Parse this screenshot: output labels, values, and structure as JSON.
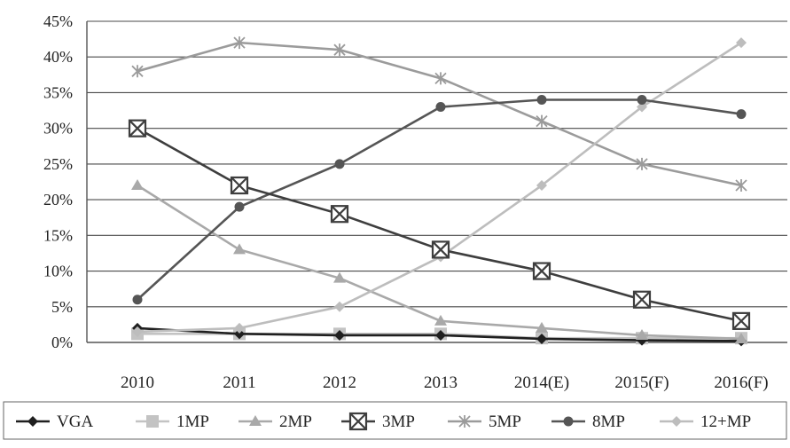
{
  "chart_data": {
    "type": "line",
    "categories": [
      "2010",
      "2011",
      "2012",
      "2013",
      "2014(E)",
      "2015(F)",
      "2016(F)"
    ],
    "ylim": [
      0,
      45
    ],
    "yticks": [
      0,
      5,
      10,
      15,
      20,
      25,
      30,
      35,
      40,
      45
    ],
    "ytick_labels": [
      "0%",
      "5%",
      "10%",
      "15%",
      "20%",
      "25%",
      "30%",
      "35%",
      "40%",
      "45%"
    ],
    "grid": true,
    "legend_position": "bottom",
    "series": [
      {
        "name": "VGA",
        "values": [
          2,
          1.2,
          1,
          1,
          0.5,
          0.3,
          0.2
        ],
        "color": "#1f1f1f",
        "marker": "diamond"
      },
      {
        "name": "1MP",
        "values": [
          1.2,
          1.2,
          1.2,
          1.2,
          0.6,
          0.6,
          0.6
        ],
        "color": "#c3c3c3",
        "marker": "square"
      },
      {
        "name": "2MP",
        "values": [
          22,
          13,
          9,
          3,
          2,
          1,
          0.5
        ],
        "color": "#a9a9a9",
        "marker": "triangle"
      },
      {
        "name": "3MP",
        "values": [
          30,
          22,
          18,
          13,
          10,
          6,
          3
        ],
        "color": "#3e3e3e",
        "marker": "xbox"
      },
      {
        "name": "5MP",
        "values": [
          38,
          42,
          41,
          37,
          31,
          25,
          22
        ],
        "color": "#9b9b9b",
        "marker": "star"
      },
      {
        "name": "8MP",
        "values": [
          6,
          19,
          25,
          33,
          34,
          34,
          32
        ],
        "color": "#555555",
        "marker": "circle"
      },
      {
        "name": "12+MP",
        "values": [
          1.5,
          2,
          5,
          12,
          22,
          33,
          42
        ],
        "color": "#bdbdbd",
        "marker": "diamond"
      }
    ]
  }
}
